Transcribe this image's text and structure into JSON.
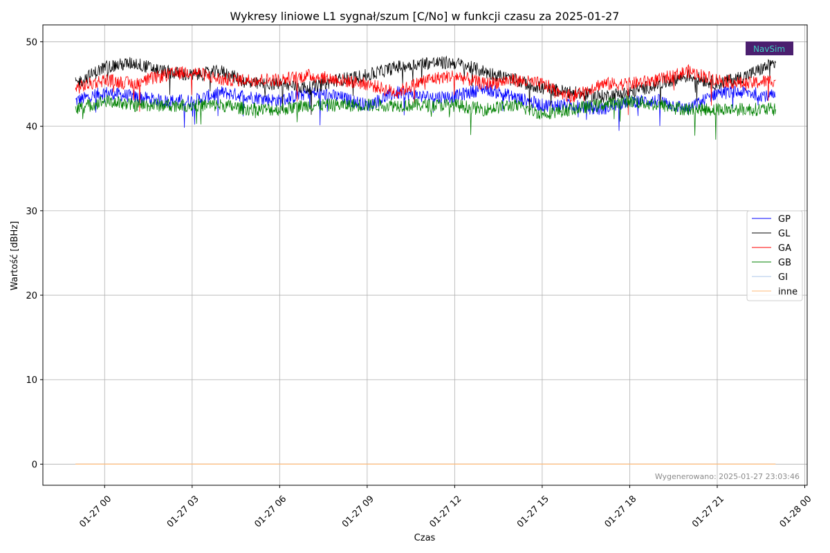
{
  "chart_data": {
    "type": "line",
    "title": "Wykresy liniowe L1 sygnał/szum [C/No] w funkcji czasu za 2025-01-27",
    "xlabel": "Czas",
    "ylabel": "Wartość [dBHz]",
    "x_tick_labels": [
      "01-27 00",
      "01-27 03",
      "01-27 06",
      "01-27 09",
      "01-27 12",
      "01-27 15",
      "01-27 18",
      "01-27 21",
      "01-28 00"
    ],
    "y_tick_labels": [
      "0",
      "10",
      "20",
      "30",
      "40",
      "50"
    ],
    "xlim": [
      "2025-01-26 21:53",
      "2025-01-28 00:05"
    ],
    "ylim": [
      -2.5,
      52
    ],
    "grid": true,
    "legend_position": "right",
    "x": [
      "2025-01-26 23:00",
      "2025-01-27 00:00",
      "2025-01-27 01:00",
      "2025-01-27 02:00",
      "2025-01-27 03:00",
      "2025-01-27 04:00",
      "2025-01-27 05:00",
      "2025-01-27 06:00",
      "2025-01-27 07:00",
      "2025-01-27 08:00",
      "2025-01-27 09:00",
      "2025-01-27 10:00",
      "2025-01-27 11:00",
      "2025-01-27 12:00",
      "2025-01-27 13:00",
      "2025-01-27 14:00",
      "2025-01-27 15:00",
      "2025-01-27 16:00",
      "2025-01-27 17:00",
      "2025-01-27 18:00",
      "2025-01-27 19:00",
      "2025-01-27 20:00",
      "2025-01-27 21:00",
      "2025-01-27 22:00",
      "2025-01-27 23:00"
    ],
    "series": [
      {
        "name": "GP",
        "color": "#0000ff",
        "values": [
          43.0,
          44.0,
          43.5,
          43.0,
          43.0,
          44.0,
          43.5,
          43.0,
          44.0,
          43.5,
          42.5,
          44.0,
          43.5,
          43.5,
          44.5,
          43.5,
          42.5,
          42.5,
          42.0,
          43.0,
          43.0,
          42.0,
          44.0,
          44.0,
          43.5
        ]
      },
      {
        "name": "GL",
        "color": "#000000",
        "values": [
          45.0,
          47.0,
          47.5,
          46.5,
          46.0,
          46.5,
          45.0,
          45.0,
          44.5,
          45.5,
          46.0,
          47.0,
          47.5,
          47.5,
          46.5,
          45.5,
          44.5,
          44.0,
          43.5,
          44.0,
          45.0,
          46.0,
          45.0,
          46.0,
          47.5
        ]
      },
      {
        "name": "GA",
        "color": "#ff0000",
        "values": [
          44.5,
          45.5,
          45.0,
          46.0,
          46.5,
          45.5,
          45.5,
          45.5,
          46.0,
          45.5,
          45.0,
          44.0,
          45.5,
          46.0,
          45.0,
          45.5,
          45.0,
          43.5,
          45.0,
          45.0,
          45.5,
          46.5,
          45.5,
          45.0,
          45.5
        ]
      },
      {
        "name": "GB",
        "color": "#008000",
        "values": [
          42.0,
          43.0,
          42.5,
          42.5,
          42.5,
          42.5,
          42.0,
          42.0,
          42.5,
          42.5,
          42.5,
          42.5,
          42.5,
          42.5,
          42.0,
          42.5,
          41.5,
          42.0,
          42.5,
          43.0,
          42.5,
          42.0,
          42.0,
          42.0,
          42.0
        ]
      },
      {
        "name": "GI",
        "color": "#aec7e8",
        "values": [
          0,
          0,
          0,
          0,
          0,
          0,
          0,
          0,
          0,
          0,
          0,
          0,
          0,
          0,
          0,
          0,
          0,
          0,
          0,
          0,
          0,
          0,
          0,
          0,
          0
        ]
      },
      {
        "name": "inne",
        "color": "#ffbb78",
        "values": [
          0,
          0,
          0,
          0,
          0,
          0,
          0,
          0,
          0,
          0,
          0,
          0,
          0,
          0,
          0,
          0,
          0,
          0,
          0,
          0,
          0,
          0,
          0,
          0,
          0
        ]
      }
    ]
  },
  "footer": "Wygenerowano: 2025-01-27 23:03:46",
  "logo": {
    "text": "NavSim",
    "background": "#4b1f6f",
    "text_color": "#3fd0c0"
  }
}
